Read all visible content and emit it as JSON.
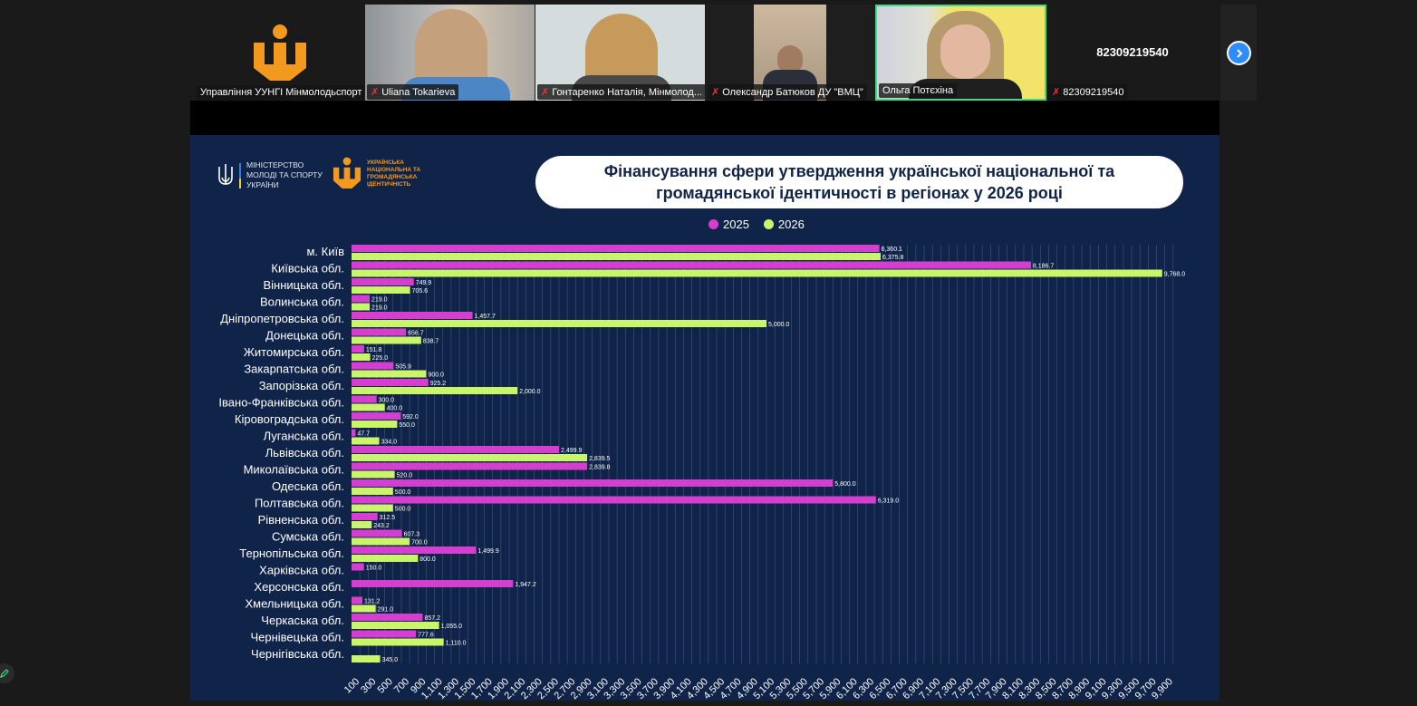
{
  "meeting": {
    "participants": [
      {
        "name": "Управління УУНГІ Мінмолодьспорт",
        "muted": false,
        "type": "logo"
      },
      {
        "name": "Uliana Tokarieva",
        "muted": true,
        "type": "video"
      },
      {
        "name": "Гонтаренко Наталія, Мінмолод...",
        "muted": true,
        "type": "video"
      },
      {
        "name": "Олександр Батюков ДУ \"ВМЦ\"",
        "muted": true,
        "type": "video"
      },
      {
        "name": "Ольга Потєхіна",
        "muted": false,
        "type": "video",
        "active_speaker": true
      },
      {
        "name": "82309219540",
        "muted": true,
        "type": "no-video",
        "center_label": "82309219540"
      }
    ],
    "next_page_icon": "chevron-right-icon",
    "edit_icon": "pencil-icon"
  },
  "slide": {
    "ministry_logo_text": "МІНІСТЕРСТВО МОЛОДІ ТА СПОРТУ УКРАЇНИ",
    "identity_logo_text": "УКРАЇНСЬКА НАЦІОНАЛЬНА ТА ГРОМАДЯНСЬКА ІДЕНТИЧНІСТЬ",
    "title_line1": "Фінансування сфери утвердження української національної та",
    "title_line2": "громадянської ідентичності в регіонах у 2026 році"
  },
  "colors": {
    "series_2025": "#d43fcf",
    "series_2026": "#c9f56b",
    "slide_bg": "#10244a",
    "active_speaker_border": "#3ddc84",
    "accent_blue": "#2d8cff"
  },
  "chart_data": {
    "type": "bar",
    "orientation": "horizontal",
    "title": "Фінансування сфери утвердження української національної та громадянської ідентичності в регіонах у 2026 році",
    "legend_placement": "top",
    "grid": true,
    "xlim": [
      0,
      10000
    ],
    "xticks": [
      100,
      300,
      500,
      700,
      900,
      1100,
      1300,
      1500,
      1700,
      1900,
      2100,
      2300,
      2500,
      2700,
      2900,
      3100,
      3300,
      3500,
      3700,
      3900,
      4100,
      4300,
      4500,
      4700,
      4900,
      5100,
      5300,
      5500,
      5700,
      5900,
      6100,
      6300,
      6500,
      6700,
      6900,
      7100,
      7300,
      7500,
      7700,
      7900,
      8100,
      8300,
      8500,
      8700,
      8900,
      9100,
      9300,
      9500,
      9700,
      9900
    ],
    "categories": [
      "м. Київ",
      "Київська обл.",
      "Вінницька обл.",
      "Волинська обл.",
      "Дніпропетровська обл.",
      "Донецька обл.",
      "Житомирська обл.",
      "Закарпатська обл.",
      "Запорізька обл.",
      "Івано-Франківська обл.",
      "Кіровоградська обл.",
      "Луганська обл.",
      "Львівська обл.",
      "Миколаївська обл.",
      "Одеська обл.",
      "Полтавська обл.",
      "Рівненська обл.",
      "Сумська обл.",
      "Тернопільська обл.",
      "Харківська обл.",
      "Херсонська обл.",
      "Хмельницька обл.",
      "Черкаська обл.",
      "Чернівецька обл.",
      "Чернігівська обл."
    ],
    "series": [
      {
        "name": "2025",
        "values": [
          6360.1,
          8186.7,
          749.9,
          219.0,
          1457.7,
          656.7,
          151.8,
          505.9,
          925.2,
          300.0,
          592.0,
          47.7,
          2499.9,
          2839.8,
          5800.0,
          6319.0,
          312.5,
          607.3,
          1499.9,
          150.0,
          1947.2,
          131.2,
          857.2,
          777.6,
          null
        ]
      },
      {
        "name": "2026",
        "values": [
          6375.8,
          9768.0,
          705.6,
          219.0,
          5000.0,
          838.7,
          225.0,
          900.0,
          2000.0,
          400.0,
          550.0,
          334.0,
          2839.5,
          520.0,
          500.0,
          500.0,
          243.2,
          700.0,
          800.0,
          null,
          null,
          291.0,
          1055.0,
          1110.0,
          345.0
        ]
      }
    ]
  }
}
